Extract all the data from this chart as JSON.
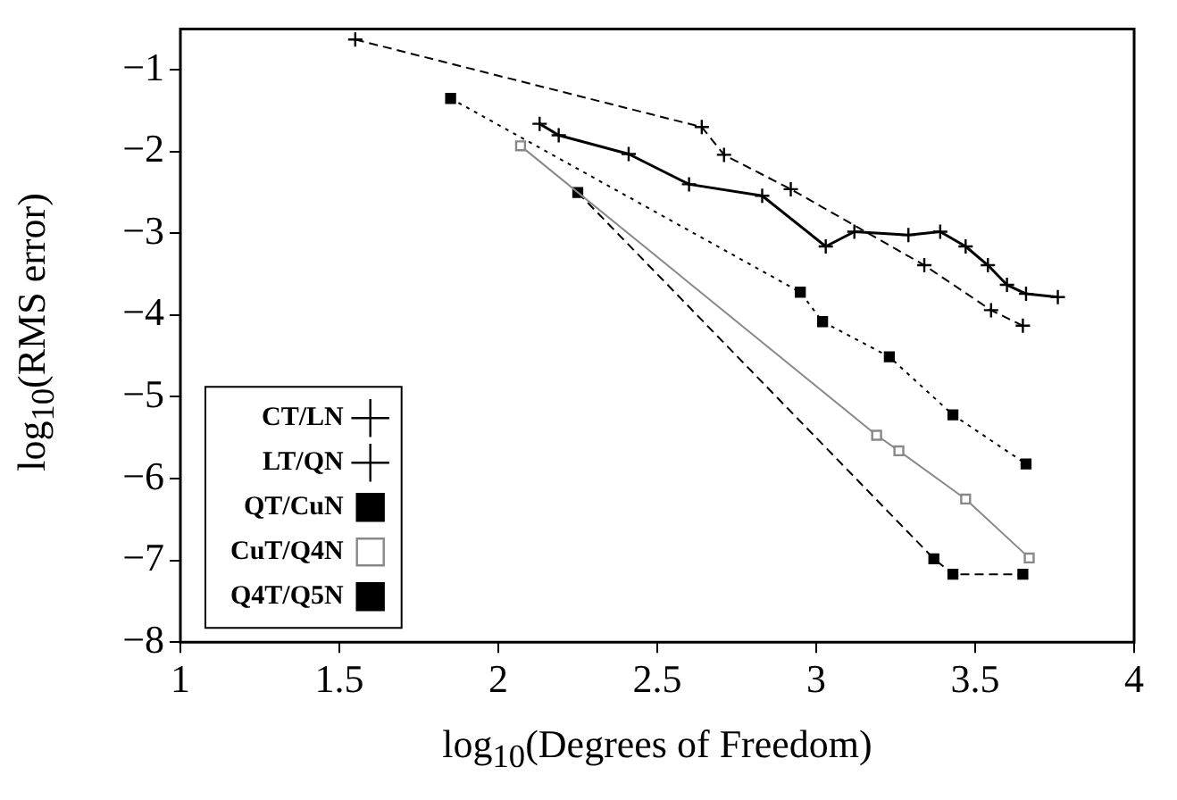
{
  "chart_data": {
    "type": "line",
    "xlabel": "log$_{10}$(Degrees of Freedom)",
    "ylabel": "log$_{10}$(RMS error)",
    "xlim": [
      1,
      4
    ],
    "ylim": [
      -8,
      -0.5
    ],
    "xticks": [
      1,
      1.5,
      2,
      2.5,
      3,
      3.5,
      4
    ],
    "yticks": [
      -8,
      -7,
      -6,
      -5,
      -4,
      -3,
      -2,
      -1
    ],
    "grid": false,
    "legend": "bottom left",
    "series": [
      {
        "name": "CT/LN",
        "color": "#000000",
        "marker": "cross",
        "line_style": "solid",
        "x": [
          2.13,
          2.19,
          2.41,
          2.6,
          2.83,
          3.03,
          3.12,
          3.29,
          3.39,
          3.47,
          3.54,
          3.6,
          3.66,
          3.76
        ],
        "values": [
          -1.66,
          -1.8,
          -2.03,
          -2.4,
          -2.54,
          -3.16,
          -2.98,
          -3.02,
          -2.98,
          -3.16,
          -3.39,
          -3.63,
          -3.74,
          -3.78
        ]
      },
      {
        "name": "LT/QN",
        "color": "#000000",
        "marker": "cross",
        "line_style": "dashed",
        "x": [
          1.55,
          2.64,
          2.71,
          2.92,
          3.34,
          3.55,
          3.65
        ],
        "values": [
          -0.63,
          -1.7,
          -2.04,
          -2.46,
          -3.39,
          -3.94,
          -4.13
        ]
      },
      {
        "name": "QT/CuN",
        "color": "#000000",
        "marker": "square",
        "line_style": "dotted",
        "x": [
          1.85,
          2.95,
          3.02,
          3.23,
          3.43,
          3.66
        ],
        "values": [
          -1.35,
          -3.72,
          -4.08,
          -4.51,
          -5.22,
          -5.82
        ]
      },
      {
        "name": "CuT/Q4N",
        "color": "#888888",
        "marker": "square",
        "line_style": "solid",
        "x": [
          2.07,
          3.19,
          3.26,
          3.47,
          3.67
        ],
        "values": [
          -1.93,
          -5.47,
          -5.66,
          -6.25,
          -6.97
        ]
      },
      {
        "name": "Q4T/Q5N",
        "color": "#000000",
        "marker": "square",
        "line_style": "dashed",
        "x": [
          2.25,
          3.37,
          3.43,
          3.65
        ],
        "values": [
          -2.5,
          -6.98,
          -7.17,
          -7.17
        ]
      }
    ]
  }
}
